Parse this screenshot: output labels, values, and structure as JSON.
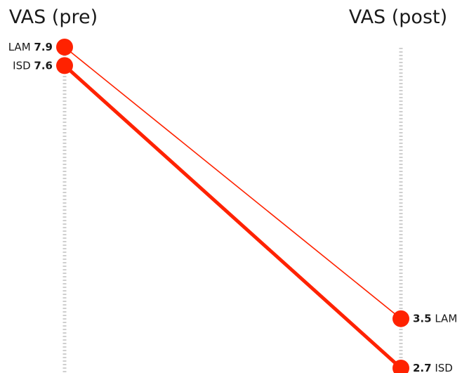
{
  "chart_data": {
    "type": "slope",
    "x": [
      "VAS (pre)",
      "VAS (post)"
    ],
    "ylim": [
      0,
      8.4
    ],
    "series": [
      {
        "name": "LAM",
        "values": [
          7.9,
          3.5
        ],
        "color": "#ff2200",
        "emphasis": false
      },
      {
        "name": "ISD",
        "values": [
          7.6,
          2.7
        ],
        "color": "#ff2200",
        "emphasis": true
      }
    ],
    "grid": false,
    "axis_style": "dotted-vertical-guides"
  }
}
